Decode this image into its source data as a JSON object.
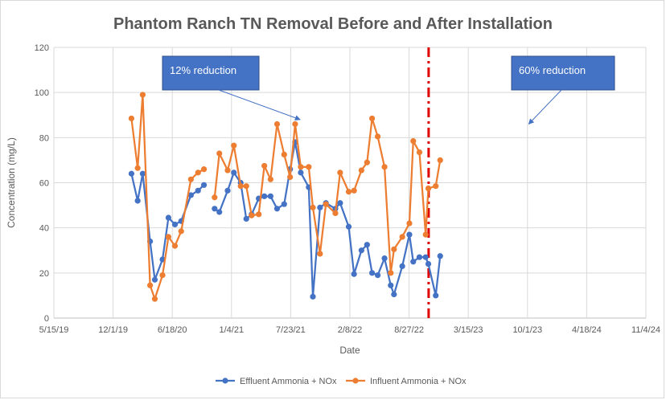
{
  "chart_data": {
    "type": "line",
    "title": "Phantom Ranch TN Removal Before and After Installation",
    "xlabel": "Date",
    "ylabel": "Concentration (mg/L)",
    "x_ticks": [
      "5/15/19",
      "12/1/19",
      "6/18/20",
      "1/4/21",
      "7/23/21",
      "2/8/22",
      "8/27/22",
      "3/15/23",
      "10/1/23",
      "4/18/24",
      "11/4/24"
    ],
    "y_ticks": [
      "0",
      "20",
      "40",
      "60",
      "80",
      "100",
      "120"
    ],
    "ylim": [
      0,
      120
    ],
    "grid": true,
    "legend_position": "bottom",
    "installation_marker": "11/1/22",
    "annotations": [
      {
        "text": "12% reduction",
        "arrow_to": {
          "x": "8/24/21",
          "y": 88
        }
      },
      {
        "text": "60% reduction",
        "arrow_to": {
          "x": "10/5/23",
          "y": 86
        }
      }
    ],
    "series": [
      {
        "name": "Effluent Ammonia + NOx",
        "color": "#4472c4",
        "points": [
          [
            "2/1/20",
            64
          ],
          [
            "2/22/20",
            52
          ],
          [
            "3/10/20",
            64
          ],
          [
            "4/4/20",
            34
          ],
          [
            "4/20/20",
            17
          ],
          [
            "5/16/20",
            26
          ],
          [
            "6/5/20",
            44.5
          ],
          [
            "6/27/20",
            41.5
          ],
          [
            "7/18/20",
            43
          ],
          [
            "8/20/20",
            54.5
          ],
          [
            "9/13/20",
            56.5
          ],
          [
            "10/3/20",
            59
          ],
          null,
          [
            "11/8/20",
            48.5
          ],
          [
            "11/24/20",
            47
          ],
          [
            "12/22/20",
            56.5
          ],
          [
            "1/12/21",
            64.5
          ],
          [
            "2/4/21",
            60
          ],
          [
            "2/23/21",
            44
          ],
          [
            "3/13/21",
            46
          ],
          [
            "4/6/21",
            53
          ],
          [
            "4/25/21",
            54
          ],
          [
            "5/16/21",
            54
          ],
          [
            "6/7/21",
            48.5
          ],
          [
            "7/1/21",
            50.5
          ],
          [
            "7/21/21",
            66
          ],
          [
            "8/7/21",
            78
          ],
          [
            "8/26/21",
            64.5
          ],
          [
            "9/22/21",
            58
          ],
          [
            "10/6/21",
            9.5
          ],
          [
            "10/30/21",
            49
          ],
          [
            "11/19/21",
            51
          ],
          [
            "12/21/21",
            48.5
          ],
          [
            "1/6/22",
            51
          ],
          [
            "2/4/22",
            40.5
          ],
          [
            "2/22/22",
            19.5
          ],
          [
            "3/19/22",
            30
          ],
          [
            "4/7/22",
            32.5
          ],
          [
            "4/24/22",
            20
          ],
          [
            "5/13/22",
            19
          ],
          [
            "6/5/22",
            26.5
          ],
          [
            "6/26/22",
            14.5
          ],
          [
            "7/7/22",
            10.5
          ],
          [
            "8/4/22",
            23
          ],
          [
            "8/28/22",
            37
          ],
          [
            "9/10/22",
            25
          ],
          [
            "10/1/22",
            27
          ],
          [
            "10/22/22",
            27
          ],
          [
            "10/31/22",
            24
          ],
          [
            "11/25/22",
            10
          ],
          [
            "12/10/22",
            27.5
          ]
        ]
      },
      {
        "name": "Influent Ammonia + NOx",
        "color": "#ed7d31",
        "points": [
          [
            "2/1/20",
            88.5
          ],
          [
            "2/22/20",
            66.5
          ],
          [
            "3/10/20",
            99
          ],
          [
            "4/4/20",
            14.5
          ],
          [
            "4/20/20",
            8.5
          ],
          [
            "5/16/20",
            19
          ],
          [
            "6/5/20",
            36
          ],
          [
            "6/27/20",
            32
          ],
          [
            "7/18/20",
            38.5
          ],
          [
            "8/20/20",
            61.5
          ],
          [
            "9/13/20",
            64.5
          ],
          [
            "10/3/20",
            66
          ],
          null,
          [
            "11/8/20",
            53.5
          ],
          [
            "11/24/20",
            73
          ],
          [
            "12/22/20",
            65.5
          ],
          [
            "1/12/21",
            76.5
          ],
          [
            "2/4/21",
            58.5
          ],
          [
            "2/23/21",
            58.5
          ],
          [
            "3/13/21",
            45.5
          ],
          [
            "4/6/21",
            46
          ],
          [
            "4/25/21",
            67.5
          ],
          [
            "5/16/21",
            61.5
          ],
          [
            "6/7/21",
            86
          ],
          [
            "7/1/21",
            72.5
          ],
          [
            "7/21/21",
            62.5
          ],
          [
            "8/7/21",
            86
          ],
          [
            "8/26/21",
            67
          ],
          [
            "9/22/21",
            67
          ],
          [
            "10/6/21",
            49
          ],
          [
            "10/30/21",
            28.5
          ],
          [
            "11/19/21",
            50.5
          ],
          [
            "12/21/21",
            46.5
          ],
          [
            "1/6/22",
            64.5
          ],
          [
            "2/4/22",
            56
          ],
          [
            "2/22/22",
            56.5
          ],
          [
            "3/19/22",
            65.5
          ],
          [
            "4/7/22",
            69
          ],
          [
            "4/24/22",
            88.5
          ],
          [
            "5/13/22",
            80.5
          ],
          [
            "6/5/22",
            67
          ],
          [
            "6/26/22",
            20
          ],
          [
            "7/7/22",
            30.5
          ],
          [
            "8/4/22",
            36
          ],
          [
            "8/28/22",
            42
          ],
          [
            "9/10/22",
            78.5
          ],
          [
            "10/1/22",
            73.5
          ],
          [
            "10/22/22",
            37
          ],
          [
            "10/31/22",
            57.5
          ],
          [
            "11/25/22",
            58.5
          ],
          [
            "12/10/22",
            70
          ]
        ]
      }
    ]
  }
}
